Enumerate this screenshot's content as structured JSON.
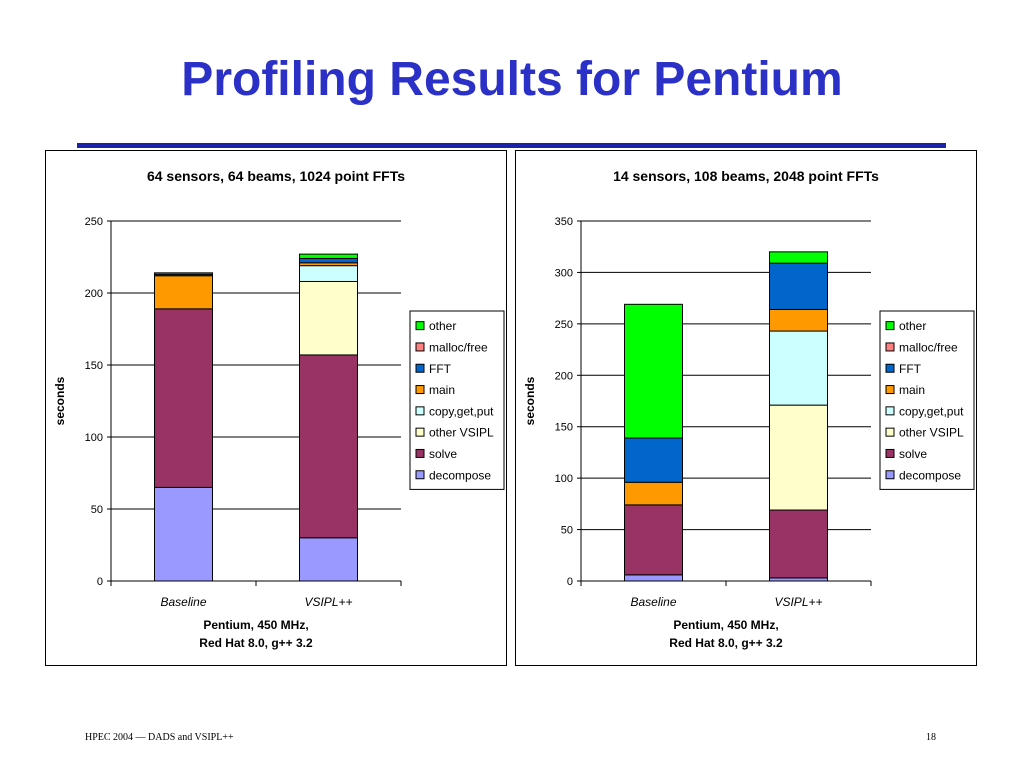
{
  "slide": {
    "title": "Profiling Results for Pentium",
    "footer_left": "HPEC 2004 — DADS and VSIPL++",
    "page_number": "18",
    "title_color": "#2b31c6",
    "rule_color": "#1a23a6"
  },
  "chart_data": [
    {
      "type": "bar",
      "stacked": true,
      "title": "64 sensors, 64 beams, 1024 point FFTs",
      "ylabel": "seconds",
      "xlabel": "Pentium, 450 MHz,\nRed Hat 8.0, g++ 3.2",
      "categories": [
        "Baseline",
        "VSIPL++"
      ],
      "ylim": [
        0,
        250
      ],
      "yticks": [
        0,
        50,
        100,
        150,
        200,
        250
      ],
      "grid": true,
      "legend_position": "right",
      "series": [
        {
          "name": "decompose",
          "color": "#9999ff",
          "values": [
            65,
            30
          ]
        },
        {
          "name": "solve",
          "color": "#993366",
          "values": [
            124,
            127
          ]
        },
        {
          "name": "other VSIPL",
          "color": "#ffffcc",
          "values": [
            0,
            51
          ]
        },
        {
          "name": "copy,get,put",
          "color": "#ccffff",
          "values": [
            0,
            11
          ]
        },
        {
          "name": "main",
          "color": "#ff9900",
          "values": [
            23,
            2
          ]
        },
        {
          "name": "FFT",
          "color": "#0066cc",
          "values": [
            1,
            3
          ]
        },
        {
          "name": "malloc/free",
          "color": "#ff8080",
          "values": [
            0,
            0
          ]
        },
        {
          "name": "other",
          "color": "#00ff00",
          "values": [
            1,
            3
          ]
        }
      ]
    },
    {
      "type": "bar",
      "stacked": true,
      "title": "14 sensors, 108 beams, 2048 point FFTs",
      "ylabel": "seconds",
      "xlabel": "Pentium, 450 MHz,\nRed Hat 8.0, g++ 3.2",
      "categories": [
        "Baseline",
        "VSIPL++"
      ],
      "ylim": [
        0,
        350
      ],
      "yticks": [
        0,
        50,
        100,
        150,
        200,
        250,
        300,
        350
      ],
      "grid": true,
      "legend_position": "right",
      "series": [
        {
          "name": "decompose",
          "color": "#9999ff",
          "values": [
            6,
            3
          ]
        },
        {
          "name": "solve",
          "color": "#993366",
          "values": [
            68,
            66
          ]
        },
        {
          "name": "other VSIPL",
          "color": "#ffffcc",
          "values": [
            0,
            102
          ]
        },
        {
          "name": "copy,get,put",
          "color": "#ccffff",
          "values": [
            0,
            72
          ]
        },
        {
          "name": "main",
          "color": "#ff9900",
          "values": [
            22,
            21
          ]
        },
        {
          "name": "FFT",
          "color": "#0066cc",
          "values": [
            43,
            45
          ]
        },
        {
          "name": "malloc/free",
          "color": "#ff8080",
          "values": [
            0,
            0
          ]
        },
        {
          "name": "other",
          "color": "#00ff00",
          "values": [
            130,
            11
          ]
        }
      ]
    }
  ]
}
